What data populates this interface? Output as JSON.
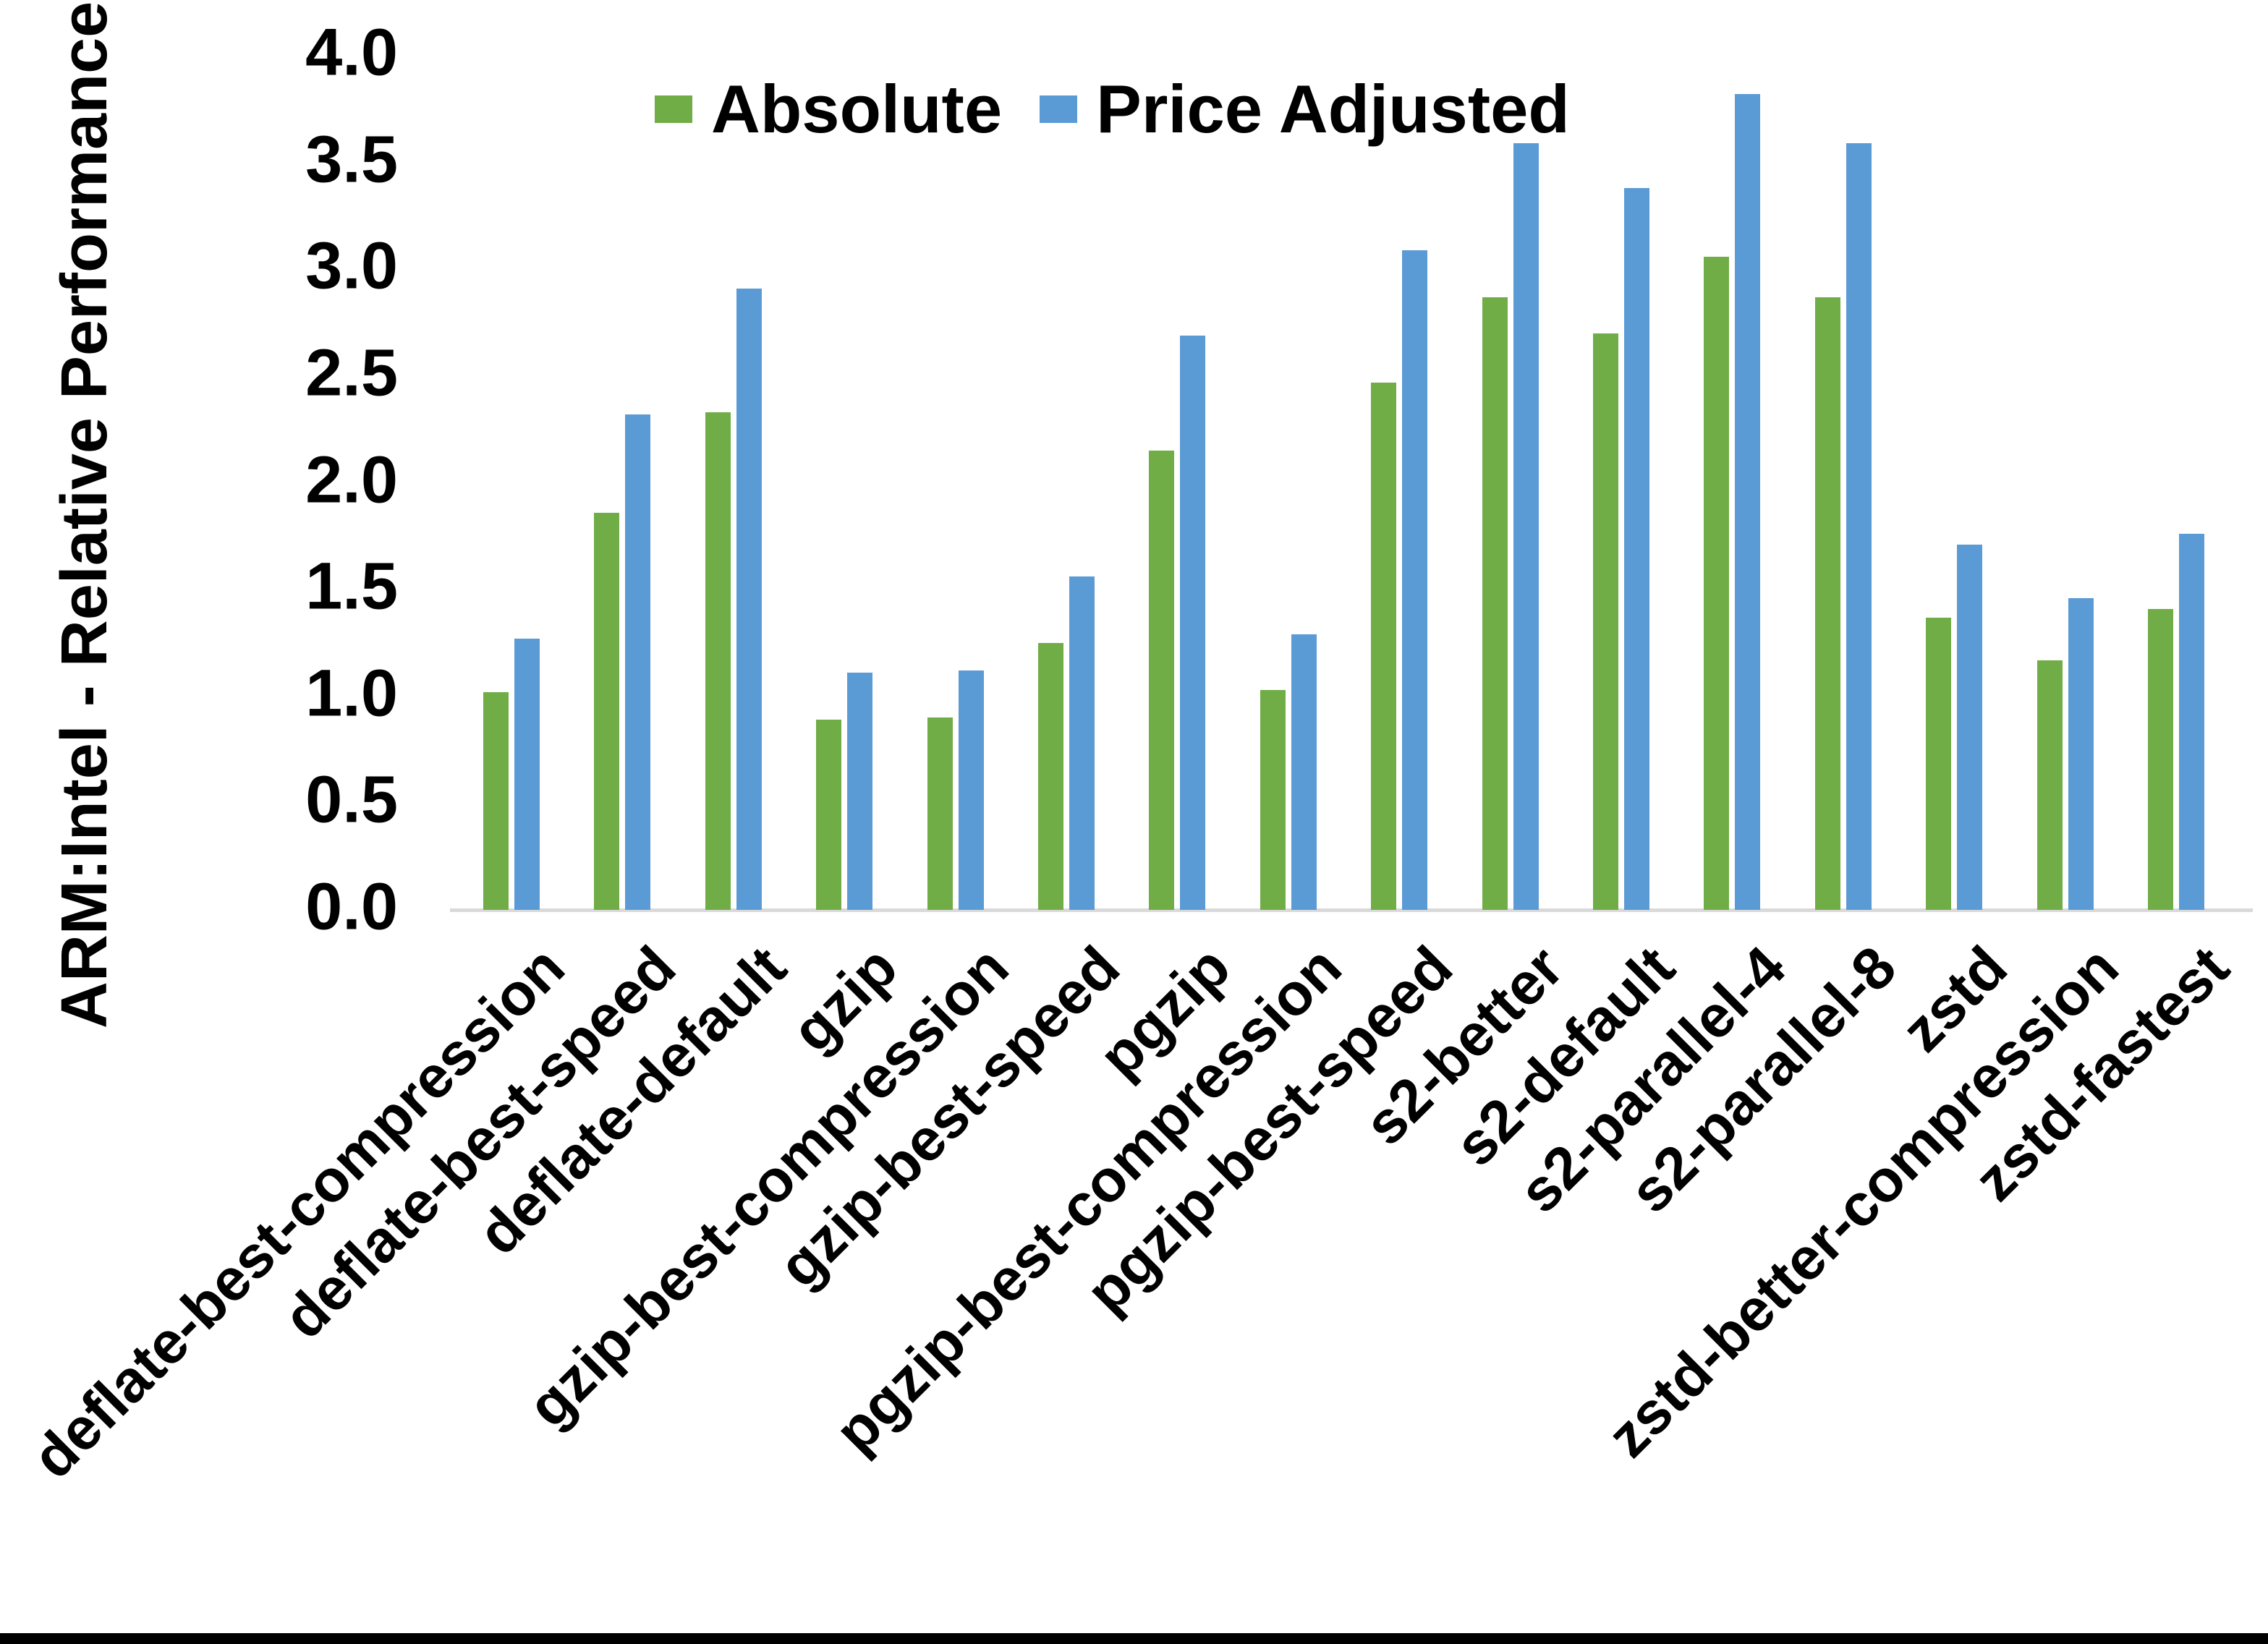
{
  "chart_data": {
    "type": "bar",
    "title": "",
    "xlabel": "",
    "ylabel": "ARM:Intel - Relative Performance",
    "ylim": [
      0.0,
      4.0
    ],
    "ytick_step": 0.5,
    "yticks": [
      "4.0",
      "3.5",
      "3.0",
      "2.5",
      "2.0",
      "1.5",
      "1.0",
      "0.5",
      "0.0"
    ],
    "grid": false,
    "legend_position": "top-center",
    "categories": [
      "deflate-best-compression",
      "deflate-best-speed",
      "deflate-default",
      "gzip",
      "gzip-best-compression",
      "gzip-best-speed",
      "pgzip",
      "pgzip-best-compression",
      "pgzip-best-speed",
      "s2-better",
      "s2-default",
      "s2-parallel-4",
      "s2-parallel-8",
      "zstd",
      "zstd-better-compression",
      "zstd-fastest"
    ],
    "series": [
      {
        "name": "Absolute",
        "color": "#70AD47",
        "values": [
          1.02,
          1.86,
          2.33,
          0.89,
          0.9,
          1.25,
          2.15,
          1.03,
          2.47,
          2.87,
          2.7,
          3.06,
          2.87,
          1.37,
          1.17,
          1.41
        ]
      },
      {
        "name": "Price Adjusted",
        "color": "#5B9BD5",
        "values": [
          1.27,
          2.32,
          2.91,
          1.11,
          1.12,
          1.56,
          2.69,
          1.29,
          3.09,
          3.59,
          3.38,
          3.82,
          3.59,
          1.71,
          1.46,
          1.76
        ]
      }
    ],
    "colors": {
      "axis_line": "#D9D9D9",
      "text": "#000000",
      "background": "#FFFFFF",
      "bottom_border": "#000000"
    }
  }
}
